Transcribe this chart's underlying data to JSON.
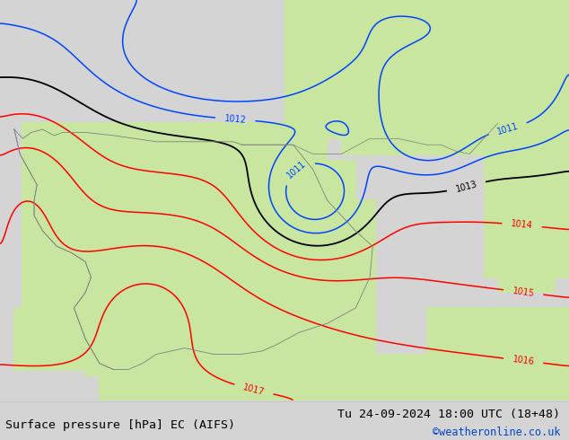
{
  "title_left": "Surface pressure [hPa] EC (AIFS)",
  "title_right": "Tu 24-09-2024 18:00 UTC (18+48)",
  "credit": "©weatheronline.co.uk",
  "background_land": "#c8e6a0",
  "background_sea": "#d4d4d4",
  "contour_color_black": "#000000",
  "contour_color_red": "#ff0000",
  "contour_color_blue": "#0044ff",
  "label_fontsize": 7,
  "footer_fontsize": 9.5,
  "credit_fontsize": 8.5,
  "fig_width": 6.34,
  "fig_height": 4.9,
  "dpi": 100
}
